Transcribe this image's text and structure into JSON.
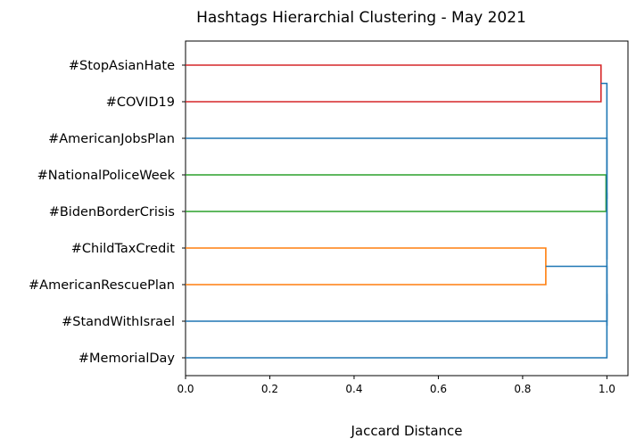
{
  "chart_data": {
    "type": "dendrogram",
    "orientation": "left",
    "title": "Hashtags Hierarchial Clustering - May 2021",
    "xlabel": "Jaccard Distance",
    "ylabel": "",
    "xlim": [
      0,
      1.05
    ],
    "xticks": [
      "0.0",
      "0.2",
      "0.4",
      "0.6",
      "0.8",
      "1.0"
    ],
    "leaves": [
      "#StopAsianHate",
      "#COVID19",
      "#AmericanJobsPlan",
      "#NationalPoliceWeek",
      "#BidenBorderCrisis",
      "#ChildTaxCredit",
      "#AmericanRescuePlan",
      "#StandWithIsrael",
      "#MemorialDay"
    ],
    "merges": [
      {
        "name": "link-stopasianhate-covid19",
        "left": "#StopAsianHate",
        "right": "#COVID19",
        "distance": 0.986,
        "color": "#d62728"
      },
      {
        "name": "link-nationalpoliceweek-bidenbordercrisis",
        "left": "#NationalPoliceWeek",
        "right": "#BidenBorderCrisis",
        "distance": 0.998,
        "color": "#2ca02c"
      },
      {
        "name": "link-childtaxcredit-americanrescueplan",
        "left": "#ChildTaxCredit",
        "right": "#AmericanRescuePlan",
        "distance": 0.855,
        "color": "#ff7f0e"
      },
      {
        "name": "link-childtax-cluster-standwithisrael",
        "left": "#ChildTaxCredit|#AmericanRescuePlan",
        "right": "#StandWithIsrael",
        "distance": 1.0,
        "color": "#1f77b4"
      },
      {
        "name": "link-root-lower",
        "left": "#ChildTaxCredit|#AmericanRescuePlan|#StandWithIsrael",
        "right": "#MemorialDay",
        "distance": 1.0,
        "color": "#1f77b4"
      },
      {
        "name": "link-root-middle",
        "left": "#NationalPoliceWeek|#BidenBorderCrisis",
        "right": "#ChildTaxCredit|#AmericanRescuePlan|#StandWithIsrael|#MemorialDay",
        "distance": 1.0,
        "color": "#1f77b4"
      },
      {
        "name": "link-root-jobsplan",
        "left": "#AmericanJobsPlan",
        "right": "#NationalPoliceWeek|#BidenBorderCrisis|#ChildTaxCredit|#AmericanRescuePlan|#StandWithIsrael|#MemorialDay",
        "distance": 1.0,
        "color": "#1f77b4"
      },
      {
        "name": "link-root-top",
        "left": "#StopAsianHate|#COVID19",
        "right": "#AmericanJobsPlan|#NationalPoliceWeek|#BidenBorderCrisis|#ChildTaxCredit|#AmericanRescuePlan|#StandWithIsrael|#MemorialDay",
        "distance": 1.0,
        "color": "#1f77b4"
      }
    ],
    "grid": false,
    "colors": {
      "red": "#d62728",
      "green": "#2ca02c",
      "orange": "#ff7f0e",
      "blue": "#1f77b4"
    }
  }
}
